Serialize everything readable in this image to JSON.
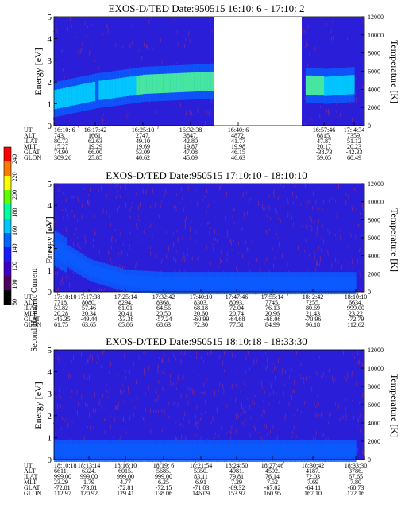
{
  "colorbar": {
    "label": "Second Harmonic Current",
    "ticks": [
      "240",
      "220",
      "200",
      "180",
      "160",
      "140",
      "120",
      "100",
      "80"
    ],
    "colors": [
      "#ff0000",
      "#ff7a00",
      "#ffff00",
      "#60ff00",
      "#00ffa0",
      "#00c8ff",
      "#0064ff",
      "#1a1aff",
      "#3c00c8",
      "#500060",
      "#000000"
    ]
  },
  "colors": {
    "background": "#2a1ed8",
    "noise": "#8a2a8a",
    "mid": "#0a5cff",
    "cyan": "#00d8ff",
    "green": "#50ff90"
  },
  "panels": [
    {
      "title": "EXOS-D/TED   Date:950515  16:10: 6 - 17:10: 2",
      "ylabel": "Energy [eV]",
      "y2label": "Temperature [K]",
      "yticks": [
        "5",
        "4",
        "3",
        "2",
        "1",
        "0"
      ],
      "y2ticks": [
        "12000",
        "10000",
        "8000",
        "6000",
        "4000",
        "2000",
        "0"
      ],
      "row_labels": [
        "UT",
        "ALT",
        "ILAT",
        "MLT",
        "GLAT",
        "GLON"
      ],
      "columns": [
        [
          "16:10: 6",
          "743.",
          "80.73",
          "15.27",
          "74.90",
          "309.26"
        ],
        [
          "16:17:42",
          "1661.",
          "62.63",
          "19.29",
          "66.00",
          "25.85"
        ],
        [
          "16:25:10",
          "2747.",
          "49.10",
          "19.69",
          "53.09",
          "40.62"
        ],
        [
          "16:32:38",
          "3847.",
          "42.80",
          "19.87",
          "47.08",
          "45.09"
        ],
        [
          "16:40: 6",
          "4872.",
          "41.77",
          "19.98",
          "46.15",
          "46.63"
        ],
        [
          "16:57:46",
          "6815.",
          "47.87",
          "20.17",
          "-38.73",
          "59.05"
        ],
        [
          "17: 4:34",
          "7359.",
          "51.12",
          "20.23",
          "-42.33",
          "60.49"
        ]
      ]
    },
    {
      "title": "EXOS-D/TED   Date:950515  17:10:10 - 18:10:10",
      "ylabel": "Energy [eV]",
      "y2label": "Temperature [K]",
      "yticks": [
        "5",
        "4",
        "3",
        "2",
        "1",
        "0"
      ],
      "y2ticks": [
        "12000",
        "10000",
        "8000",
        "6000",
        "4000",
        "2000",
        "0"
      ],
      "row_labels": [
        "UT",
        "ALT",
        "ILAT",
        "MLT",
        "GLAT",
        "GLON"
      ],
      "columns": [
        [
          "17:10:10",
          "7718.",
          "53.82",
          "20.28",
          "-45.35",
          "61.75"
        ],
        [
          "17:17:38",
          "8080.",
          "57.46",
          "20.34",
          "-49.44",
          "63.65"
        ],
        [
          "17:25:14",
          "8294.",
          "61.01",
          "20.41",
          "-53.38",
          "65.86"
        ],
        [
          "17:32:42",
          "8368.",
          "64.56",
          "20.50",
          "-57.24",
          "68.63"
        ],
        [
          "17:40:10",
          "8303.",
          "68.18",
          "20.60",
          "-60.99",
          "72.30"
        ],
        [
          "17:47:46",
          "8093.",
          "72.04",
          "20.74",
          "-64.68",
          "77.51"
        ],
        [
          "17:55:14",
          "7745.",
          "76.13",
          "20.96",
          "-68.06",
          "84.99"
        ],
        [
          "18: 2:42",
          "7255.",
          "80.69",
          "21.43",
          "-70.96",
          "96.18"
        ],
        [
          "18:10:10",
          "6634.",
          "999.00",
          "23.22",
          "-72.79",
          "112.62"
        ]
      ]
    },
    {
      "title": "EXOS-D/TED   Date:950515  18:10:18 - 18:33:30",
      "ylabel": "Energy [eV]",
      "y2label": "Temperature [K]",
      "yticks": [
        "5",
        "4",
        "3",
        "2",
        "1",
        "0"
      ],
      "y2ticks": [
        "12000",
        "10000",
        "8000",
        "6000",
        "4000",
        "2000",
        "0"
      ],
      "row_labels": [
        "UT",
        "ALT",
        "ILAT",
        "MLT",
        "GLAT",
        "GLON"
      ],
      "columns": [
        [
          "18:10:18",
          "6611.",
          "999.00",
          "23.29",
          "-72.81",
          "112.97"
        ],
        [
          "18:13:14",
          "6324.",
          "999.00",
          "1.79",
          "-73.01",
          "120.92"
        ],
        [
          "18:16:10",
          "6015.",
          "999.00",
          "4.77",
          "-72.81",
          "129.41"
        ],
        [
          "18:19: 6",
          "5685.",
          "999.00",
          "6.25",
          "-72.15",
          "138.06"
        ],
        [
          "18:21:54",
          "5350.",
          "83.11",
          "6.91",
          "-71.03",
          "146.09"
        ],
        [
          "18:24:50",
          "4981.",
          "79.81",
          "7.29",
          "-69.32",
          "153.92"
        ],
        [
          "18:27:46",
          "4592.",
          "76.14",
          "7.52",
          "-67.02",
          "160.95"
        ],
        [
          "18:30:42",
          "4187.",
          "72.03",
          "7.69",
          "-64.11",
          "167.10"
        ],
        [
          "18:33:30",
          "3786.",
          "67.65",
          "7.80",
          "-60.73",
          "172.16"
        ]
      ]
    }
  ],
  "chart_data": [
    {
      "type": "heatmap",
      "title": "EXOS-D/TED   Date:950515  16:10: 6 - 17:10: 2",
      "xlabel": "UT",
      "ylabel": "Energy [eV]",
      "y2label": "Temperature [K]",
      "ylim": [
        0,
        5
      ],
      "y2lim": [
        0,
        12000
      ],
      "colorbar_label": "Second Harmonic Current",
      "colorbar_range": [
        80,
        240
      ],
      "x_ticks": [
        "16:10: 6",
        "16:17:42",
        "16:25:10",
        "16:32:38",
        "16:40: 6",
        "16:57:46",
        "17: 4:34"
      ],
      "data_gap_between": [
        "16:40: 6",
        "16:57:46"
      ],
      "band_center_eV": [
        1.2,
        1.6,
        1.9,
        2.0,
        2.1,
        1.8,
        1.9
      ],
      "band_intensity": [
        150,
        140,
        165,
        170,
        165,
        160,
        160
      ]
    },
    {
      "type": "heatmap",
      "title": "EXOS-D/TED   Date:950515  17:10:10 - 18:10:10",
      "xlabel": "UT",
      "ylabel": "Energy [eV]",
      "y2label": "Temperature [K]",
      "ylim": [
        0,
        5
      ],
      "y2lim": [
        0,
        12000
      ],
      "colorbar_label": "Second Harmonic Current",
      "colorbar_range": [
        80,
        240
      ],
      "x_ticks": [
        "17:10:10",
        "17:17:38",
        "17:25:14",
        "17:32:42",
        "17:40:10",
        "17:47:46",
        "17:55:14",
        "18: 2:42",
        "18:10:10"
      ],
      "band_center_eV": [
        2.0,
        1.0,
        0.5,
        0.4,
        0.4,
        0.4,
        0.4,
        0.4,
        0.4
      ],
      "band_intensity": [
        140,
        110,
        100,
        100,
        100,
        100,
        100,
        100,
        100
      ]
    },
    {
      "type": "heatmap",
      "title": "EXOS-D/TED   Date:950515  18:10:18 - 18:33:30",
      "xlabel": "UT",
      "ylabel": "Energy [eV]",
      "y2label": "Temperature [K]",
      "ylim": [
        0,
        5
      ],
      "y2lim": [
        0,
        12000
      ],
      "colorbar_label": "Second Harmonic Current",
      "colorbar_range": [
        80,
        240
      ],
      "x_ticks": [
        "18:10:18",
        "18:13:14",
        "18:16:10",
        "18:19: 6",
        "18:21:54",
        "18:24:50",
        "18:27:46",
        "18:30:42",
        "18:33:30"
      ],
      "band_center_eV": [
        0.4,
        0.4,
        0.4,
        0.4,
        0.4,
        0.4,
        0.4,
        0.4,
        0.4
      ],
      "band_intensity": [
        100,
        100,
        100,
        100,
        100,
        100,
        100,
        100,
        100
      ]
    }
  ]
}
